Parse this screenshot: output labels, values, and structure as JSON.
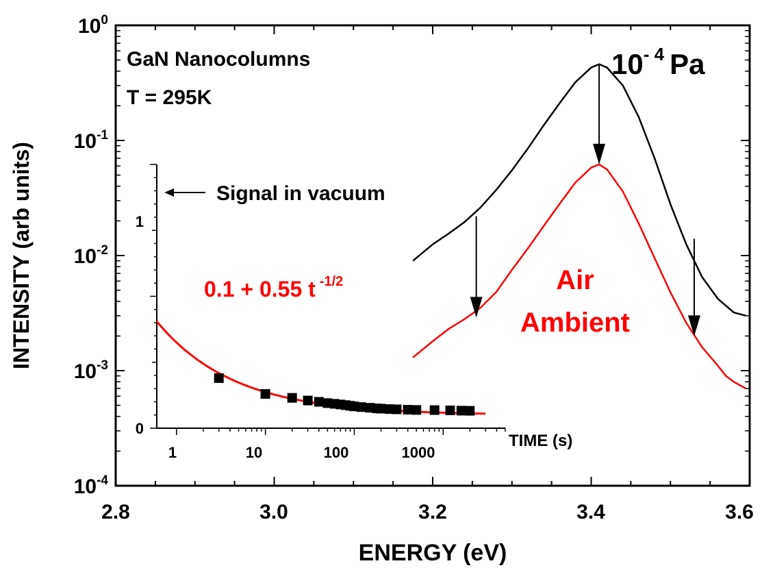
{
  "chart_data": [
    {
      "type": "line",
      "xlabel": "ENERGY (eV)",
      "ylabel": "INTENSITY (arb units)",
      "xlim": [
        2.8,
        3.6
      ],
      "ylim": [
        0.0001,
        1
      ],
      "yscale": "log",
      "x_ticks": [
        "2.8",
        "3.0",
        "3.2",
        "3.4",
        "3.6"
      ],
      "y_ticks": [
        {
          "base": "10",
          "exp": "0"
        },
        {
          "base": "10",
          "exp": "-1"
        },
        {
          "base": "10",
          "exp": "-2"
        },
        {
          "base": "10",
          "exp": "-3"
        },
        {
          "base": "10",
          "exp": "-4"
        }
      ],
      "series": [
        {
          "name": "10⁻⁴ Pa",
          "color": "#000000",
          "points": [
            [
              3.175,
              0.009
            ],
            [
              3.2,
              0.0125
            ],
            [
              3.22,
              0.0155
            ],
            [
              3.24,
              0.0195
            ],
            [
              3.26,
              0.026
            ],
            [
              3.28,
              0.037
            ],
            [
              3.3,
              0.055
            ],
            [
              3.32,
              0.085
            ],
            [
              3.34,
              0.135
            ],
            [
              3.36,
              0.21
            ],
            [
              3.38,
              0.32
            ],
            [
              3.4,
              0.43
            ],
            [
              3.41,
              0.46
            ],
            [
              3.42,
              0.43
            ],
            [
              3.44,
              0.3
            ],
            [
              3.46,
              0.16
            ],
            [
              3.48,
              0.07
            ],
            [
              3.5,
              0.028
            ],
            [
              3.52,
              0.0125
            ],
            [
              3.54,
              0.0065
            ],
            [
              3.56,
              0.0042
            ],
            [
              3.58,
              0.0032
            ],
            [
              3.595,
              0.003
            ]
          ]
        },
        {
          "name": "Air Ambient",
          "color": "#ff0000",
          "points": [
            [
              3.175,
              0.0013
            ],
            [
              3.2,
              0.0018
            ],
            [
              3.22,
              0.0023
            ],
            [
              3.24,
              0.0028
            ],
            [
              3.26,
              0.0035
            ],
            [
              3.28,
              0.0048
            ],
            [
              3.3,
              0.0075
            ],
            [
              3.32,
              0.0115
            ],
            [
              3.34,
              0.018
            ],
            [
              3.36,
              0.028
            ],
            [
              3.38,
              0.043
            ],
            [
              3.4,
              0.058
            ],
            [
              3.41,
              0.062
            ],
            [
              3.42,
              0.056
            ],
            [
              3.44,
              0.036
            ],
            [
              3.46,
              0.019
            ],
            [
              3.48,
              0.0095
            ],
            [
              3.5,
              0.0048
            ],
            [
              3.52,
              0.0026
            ],
            [
              3.54,
              0.0016
            ],
            [
              3.56,
              0.0011
            ],
            [
              3.57,
              0.0009
            ],
            [
              3.58,
              0.0008
            ],
            [
              3.595,
              0.0007
            ]
          ]
        }
      ],
      "arrows": [
        [
          3.41,
          0.46,
          3.41,
          0.062
        ],
        [
          3.255,
          0.022,
          3.255,
          0.0029
        ],
        [
          3.53,
          0.014,
          3.53,
          0.002
        ]
      ],
      "annotations": {
        "title_line1": "GaN Nanocolumns",
        "title_line2": "T = 295K",
        "pressure_base": "10",
        "pressure_exp": "- 4",
        "pressure_unit": "Pa",
        "air_line1": "Air",
        "air_line2": "Ambient"
      },
      "colors": {
        "vacuum": "#000000",
        "air": "#ff0000"
      }
    },
    {
      "type": "scatter",
      "name": "inset",
      "xlabel": "TIME (s)",
      "xscale": "log",
      "xlim": [
        0.6,
        5000
      ],
      "ylim": [
        0,
        2
      ],
      "x_ticks": [
        "1",
        "10",
        "100",
        "1000"
      ],
      "y_ticks": [
        "0",
        "1"
      ],
      "points": [
        [
          3,
          0.38
        ],
        [
          10,
          0.26
        ],
        [
          20,
          0.23
        ],
        [
          30,
          0.21
        ],
        [
          40,
          0.2
        ],
        [
          50,
          0.19
        ],
        [
          60,
          0.185
        ],
        [
          70,
          0.18
        ],
        [
          80,
          0.175
        ],
        [
          90,
          0.17
        ],
        [
          100,
          0.165
        ],
        [
          120,
          0.16
        ],
        [
          150,
          0.155
        ],
        [
          180,
          0.15
        ],
        [
          200,
          0.148
        ],
        [
          250,
          0.145
        ],
        [
          300,
          0.143
        ],
        [
          400,
          0.14
        ],
        [
          500,
          0.138
        ],
        [
          800,
          0.137
        ],
        [
          1200,
          0.135
        ],
        [
          1600,
          0.133
        ],
        [
          2000,
          0.132
        ]
      ],
      "fit": {
        "label": "0.1 + 0.55 t",
        "label_exp": "-1/2",
        "a": 0.1,
        "b": 0.55,
        "color": "#ff0000"
      },
      "vacuum_label": "Signal in vacuum"
    }
  ]
}
